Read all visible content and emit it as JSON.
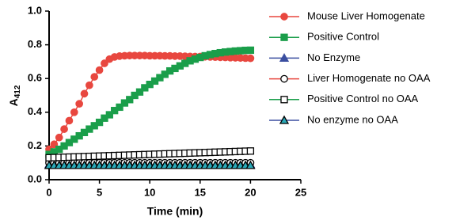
{
  "chart_data": {
    "type": "line",
    "xlabel": "Time (min)",
    "ylabel": "A",
    "ylabel_sub": "412",
    "xlim": [
      0,
      25
    ],
    "xticks": [
      0,
      5,
      10,
      15,
      20,
      25
    ],
    "ylim": [
      0,
      1
    ],
    "yticks": [
      {
        "value": 0,
        "label": "0.0"
      },
      0.2,
      0.4,
      0.6,
      0.8,
      {
        "value": 1,
        "label": "1.0"
      }
    ],
    "x": [
      0,
      0.5,
      1,
      1.5,
      2,
      2.5,
      3,
      3.5,
      4,
      4.5,
      5,
      5.5,
      6,
      6.5,
      7,
      7.5,
      8,
      8.5,
      9,
      9.5,
      10,
      10.5,
      11,
      11.5,
      12,
      12.5,
      13,
      13.5,
      14,
      14.5,
      15,
      15.5,
      16,
      16.5,
      17,
      17.5,
      18,
      18.5,
      19,
      19.5,
      20
    ],
    "series": [
      {
        "name": "Mouse Liver Homogenate",
        "color": "#e8473f",
        "marker": "circle",
        "marker_fill": "#e8473f",
        "marker_stroke": "#e8473f",
        "values": [
          0.18,
          0.21,
          0.25,
          0.3,
          0.35,
          0.4,
          0.45,
          0.51,
          0.56,
          0.61,
          0.65,
          0.69,
          0.715,
          0.728,
          0.733,
          0.735,
          0.736,
          0.736,
          0.736,
          0.736,
          0.735,
          0.735,
          0.735,
          0.734,
          0.734,
          0.733,
          0.733,
          0.732,
          0.731,
          0.73,
          0.73,
          0.729,
          0.728,
          0.727,
          0.726,
          0.725,
          0.724,
          0.723,
          0.722,
          0.721,
          0.72
        ]
      },
      {
        "name": "Positive Control",
        "color": "#1a9e4a",
        "marker": "square",
        "marker_fill": "#1a9e4a",
        "marker_stroke": "#1a9e4a",
        "values": [
          0.15,
          0.165,
          0.18,
          0.2,
          0.22,
          0.24,
          0.26,
          0.28,
          0.3,
          0.32,
          0.34,
          0.365,
          0.385,
          0.41,
          0.43,
          0.455,
          0.475,
          0.5,
          0.52,
          0.545,
          0.565,
          0.585,
          0.605,
          0.625,
          0.645,
          0.66,
          0.675,
          0.69,
          0.705,
          0.715,
          0.725,
          0.735,
          0.742,
          0.748,
          0.753,
          0.757,
          0.76,
          0.763,
          0.765,
          0.767,
          0.768
        ]
      },
      {
        "name": "No Enzyme",
        "color": "#3b4fa0",
        "marker": "triangle",
        "marker_fill": "#3b4fa0",
        "marker_stroke": "#3b4fa0",
        "values": [
          0.09,
          0.09,
          0.09,
          0.09,
          0.09,
          0.09,
          0.09,
          0.09,
          0.09,
          0.09,
          0.09,
          0.09,
          0.09,
          0.09,
          0.09,
          0.09,
          0.09,
          0.09,
          0.09,
          0.09,
          0.09,
          0.09,
          0.09,
          0.09,
          0.09,
          0.09,
          0.09,
          0.09,
          0.09,
          0.09,
          0.09,
          0.09,
          0.09,
          0.09,
          0.09,
          0.09,
          0.09,
          0.09,
          0.09,
          0.09,
          0.09
        ]
      },
      {
        "name": "Liver Homogenate no OAA",
        "color": "#e8473f",
        "marker": "circle",
        "marker_fill": "#ffffff",
        "marker_stroke": "#000000",
        "values": [
          0.1,
          0.1,
          0.1,
          0.1,
          0.1,
          0.1,
          0.1,
          0.1,
          0.1,
          0.1,
          0.1,
          0.1,
          0.1,
          0.1,
          0.1,
          0.1,
          0.1,
          0.1,
          0.1,
          0.1,
          0.1,
          0.1,
          0.1,
          0.1,
          0.1,
          0.1,
          0.1,
          0.1,
          0.1,
          0.1,
          0.1,
          0.1,
          0.1,
          0.1,
          0.1,
          0.1,
          0.1,
          0.1,
          0.1,
          0.1,
          0.1
        ]
      },
      {
        "name": "Positive Control no OAA",
        "color": "#1a9e4a",
        "marker": "square",
        "marker_fill": "#ffffff",
        "marker_stroke": "#000000",
        "values": [
          0.13,
          0.131,
          0.132,
          0.133,
          0.134,
          0.135,
          0.136,
          0.137,
          0.138,
          0.139,
          0.14,
          0.141,
          0.142,
          0.143,
          0.144,
          0.145,
          0.146,
          0.147,
          0.148,
          0.149,
          0.15,
          0.151,
          0.152,
          0.153,
          0.154,
          0.155,
          0.156,
          0.157,
          0.158,
          0.159,
          0.16,
          0.161,
          0.162,
          0.163,
          0.164,
          0.165,
          0.166,
          0.167,
          0.168,
          0.169,
          0.17
        ]
      },
      {
        "name": "No enzyme no OAA",
        "color": "#3b4fa0",
        "marker": "triangle",
        "marker_fill": "#2aa9b8",
        "marker_stroke": "#000000",
        "values": [
          0.085,
          0.085,
          0.085,
          0.085,
          0.085,
          0.085,
          0.085,
          0.085,
          0.085,
          0.085,
          0.085,
          0.085,
          0.085,
          0.085,
          0.085,
          0.085,
          0.085,
          0.085,
          0.085,
          0.085,
          0.085,
          0.085,
          0.085,
          0.085,
          0.085,
          0.085,
          0.085,
          0.085,
          0.085,
          0.085,
          0.085,
          0.085,
          0.085,
          0.085,
          0.085,
          0.085,
          0.085,
          0.085,
          0.085,
          0.085,
          0.085
        ]
      }
    ]
  }
}
